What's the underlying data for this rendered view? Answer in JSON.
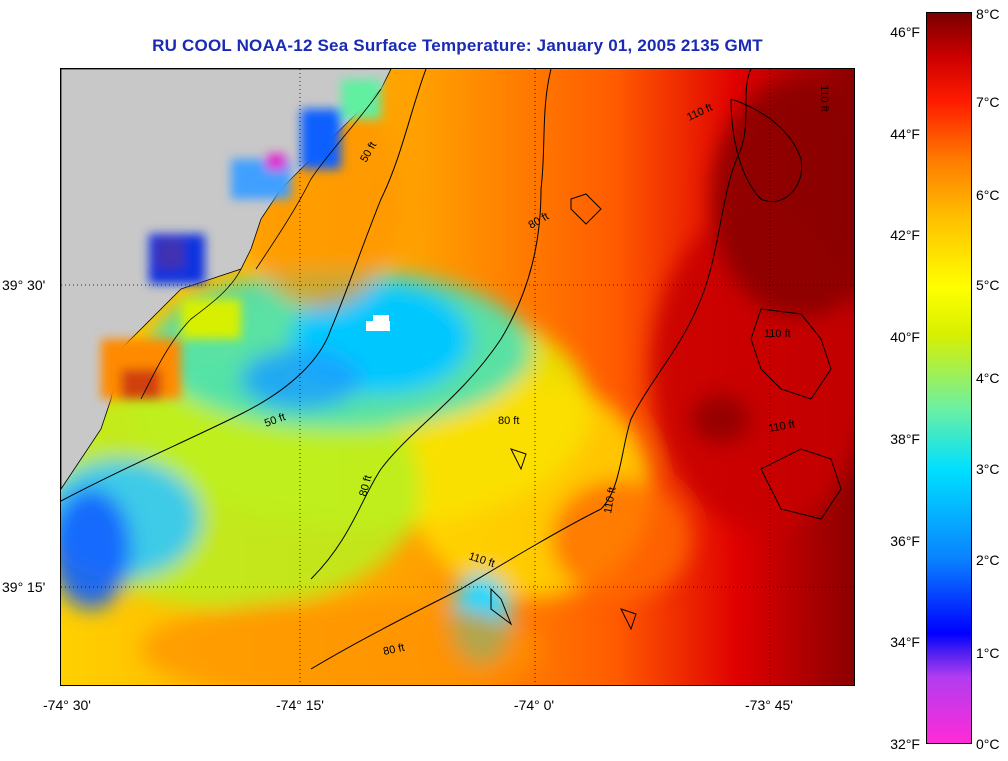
{
  "title": "RU COOL  NOAA-12  Sea Surface Temperature:  January 01, 2005 2135 GMT",
  "axes": {
    "x_ticks": [
      "-74° 30'",
      "-74° 15'",
      "-74° 0'",
      "-73° 45'"
    ],
    "y_ticks": [
      "39° 30'",
      "39° 15'"
    ]
  },
  "contours": {
    "labels": [
      "50 ft",
      "50 ft",
      "80 ft",
      "80 ft",
      "80 ft",
      "80 ft",
      "110 ft",
      "110 ft",
      "110 ft",
      "110 ft",
      "110 ft",
      "110 ft"
    ]
  },
  "colorbar": {
    "fahrenheit": [
      "46°F",
      "44°F",
      "42°F",
      "40°F",
      "38°F",
      "36°F",
      "34°F",
      "32°F"
    ],
    "celsius": [
      "8°C",
      "7°C",
      "6°C",
      "5°C",
      "4°C",
      "3°C",
      "2°C",
      "1°C",
      "0°C"
    ]
  },
  "colors": {
    "title": "#1a2bb3",
    "land": "#c8c8c8",
    "warm": "#cc0000",
    "cool": "#00d8ff"
  }
}
